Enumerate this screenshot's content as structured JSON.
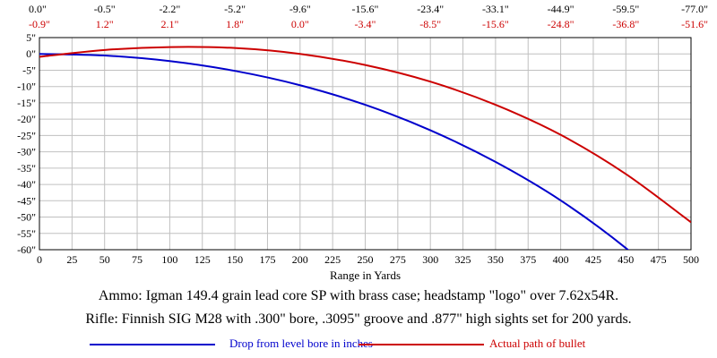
{
  "chart_data": {
    "type": "line",
    "title": "",
    "xlabel": "Range in Yards",
    "ylabel": "",
    "xlim": [
      0,
      500
    ],
    "ylim": [
      -60,
      5
    ],
    "x_ticks": [
      "0",
      "25",
      "50",
      "75",
      "100",
      "125",
      "150",
      "175",
      "200",
      "225",
      "250",
      "275",
      "300",
      "325",
      "350",
      "375",
      "400",
      "425",
      "450",
      "475",
      "500"
    ],
    "y_ticks": [
      "5\"",
      "0\"",
      "-5\"",
      "-10\"",
      "-15\"",
      "-20\"",
      "-25\"",
      "-30\"",
      "-35\"",
      "-40\"",
      "-45\"",
      "-50\"",
      "-55\"",
      "-60\""
    ],
    "y_tick_values": [
      5,
      0,
      -5,
      -10,
      -15,
      -20,
      -25,
      -30,
      -35,
      -40,
      -45,
      -50,
      -55,
      -60
    ],
    "grid": true,
    "top_row_drop": [
      "0.0\"",
      "-0.5\"",
      "-2.2\"",
      "-5.2\"",
      "-9.6\"",
      "-15.6\"",
      "-23.4\"",
      "-33.1\"",
      "-44.9\"",
      "-59.5\"",
      "-77.0\""
    ],
    "top_row_path": [
      "-0.9\"",
      "1.2\"",
      "2.1\"",
      "1.8\"",
      "0.0\"",
      "-3.4\"",
      "-8.5\"",
      "-15.6\"",
      "-24.8\"",
      "-36.8\"",
      "-51.6\""
    ],
    "x": [
      0,
      50,
      100,
      150,
      200,
      250,
      300,
      350,
      400,
      450,
      500
    ],
    "series": [
      {
        "name": "Drop from level bore in inches",
        "color": "#0000cc",
        "values": [
          0.0,
          -0.5,
          -2.2,
          -5.2,
          -9.6,
          -15.6,
          -23.4,
          -33.1,
          -44.9,
          -59.5,
          -77.0
        ]
      },
      {
        "name": "Actual path of bullet",
        "color": "#cc0000",
        "values": [
          -0.9,
          1.2,
          2.1,
          1.8,
          0.0,
          -3.4,
          -8.5,
          -15.6,
          -24.8,
          -36.8,
          -51.6
        ]
      }
    ],
    "legend_position": "bottom"
  },
  "captions": {
    "ammo": "Ammo:  Igman 149.4 grain lead core SP with brass case; headstamp \"logo\" over 7.62x54R.",
    "rifle": "Rifle:  Finnish SIG M28 with .300\" bore, .3095\" groove and .877\" high sights set for 200 yards."
  },
  "legend": {
    "drop_label": "Drop from level bore in inches",
    "path_label": "Actual path of bullet"
  },
  "colors": {
    "drop": "#0000cc",
    "path": "#cc0000",
    "grid": "#c0c0c0"
  }
}
